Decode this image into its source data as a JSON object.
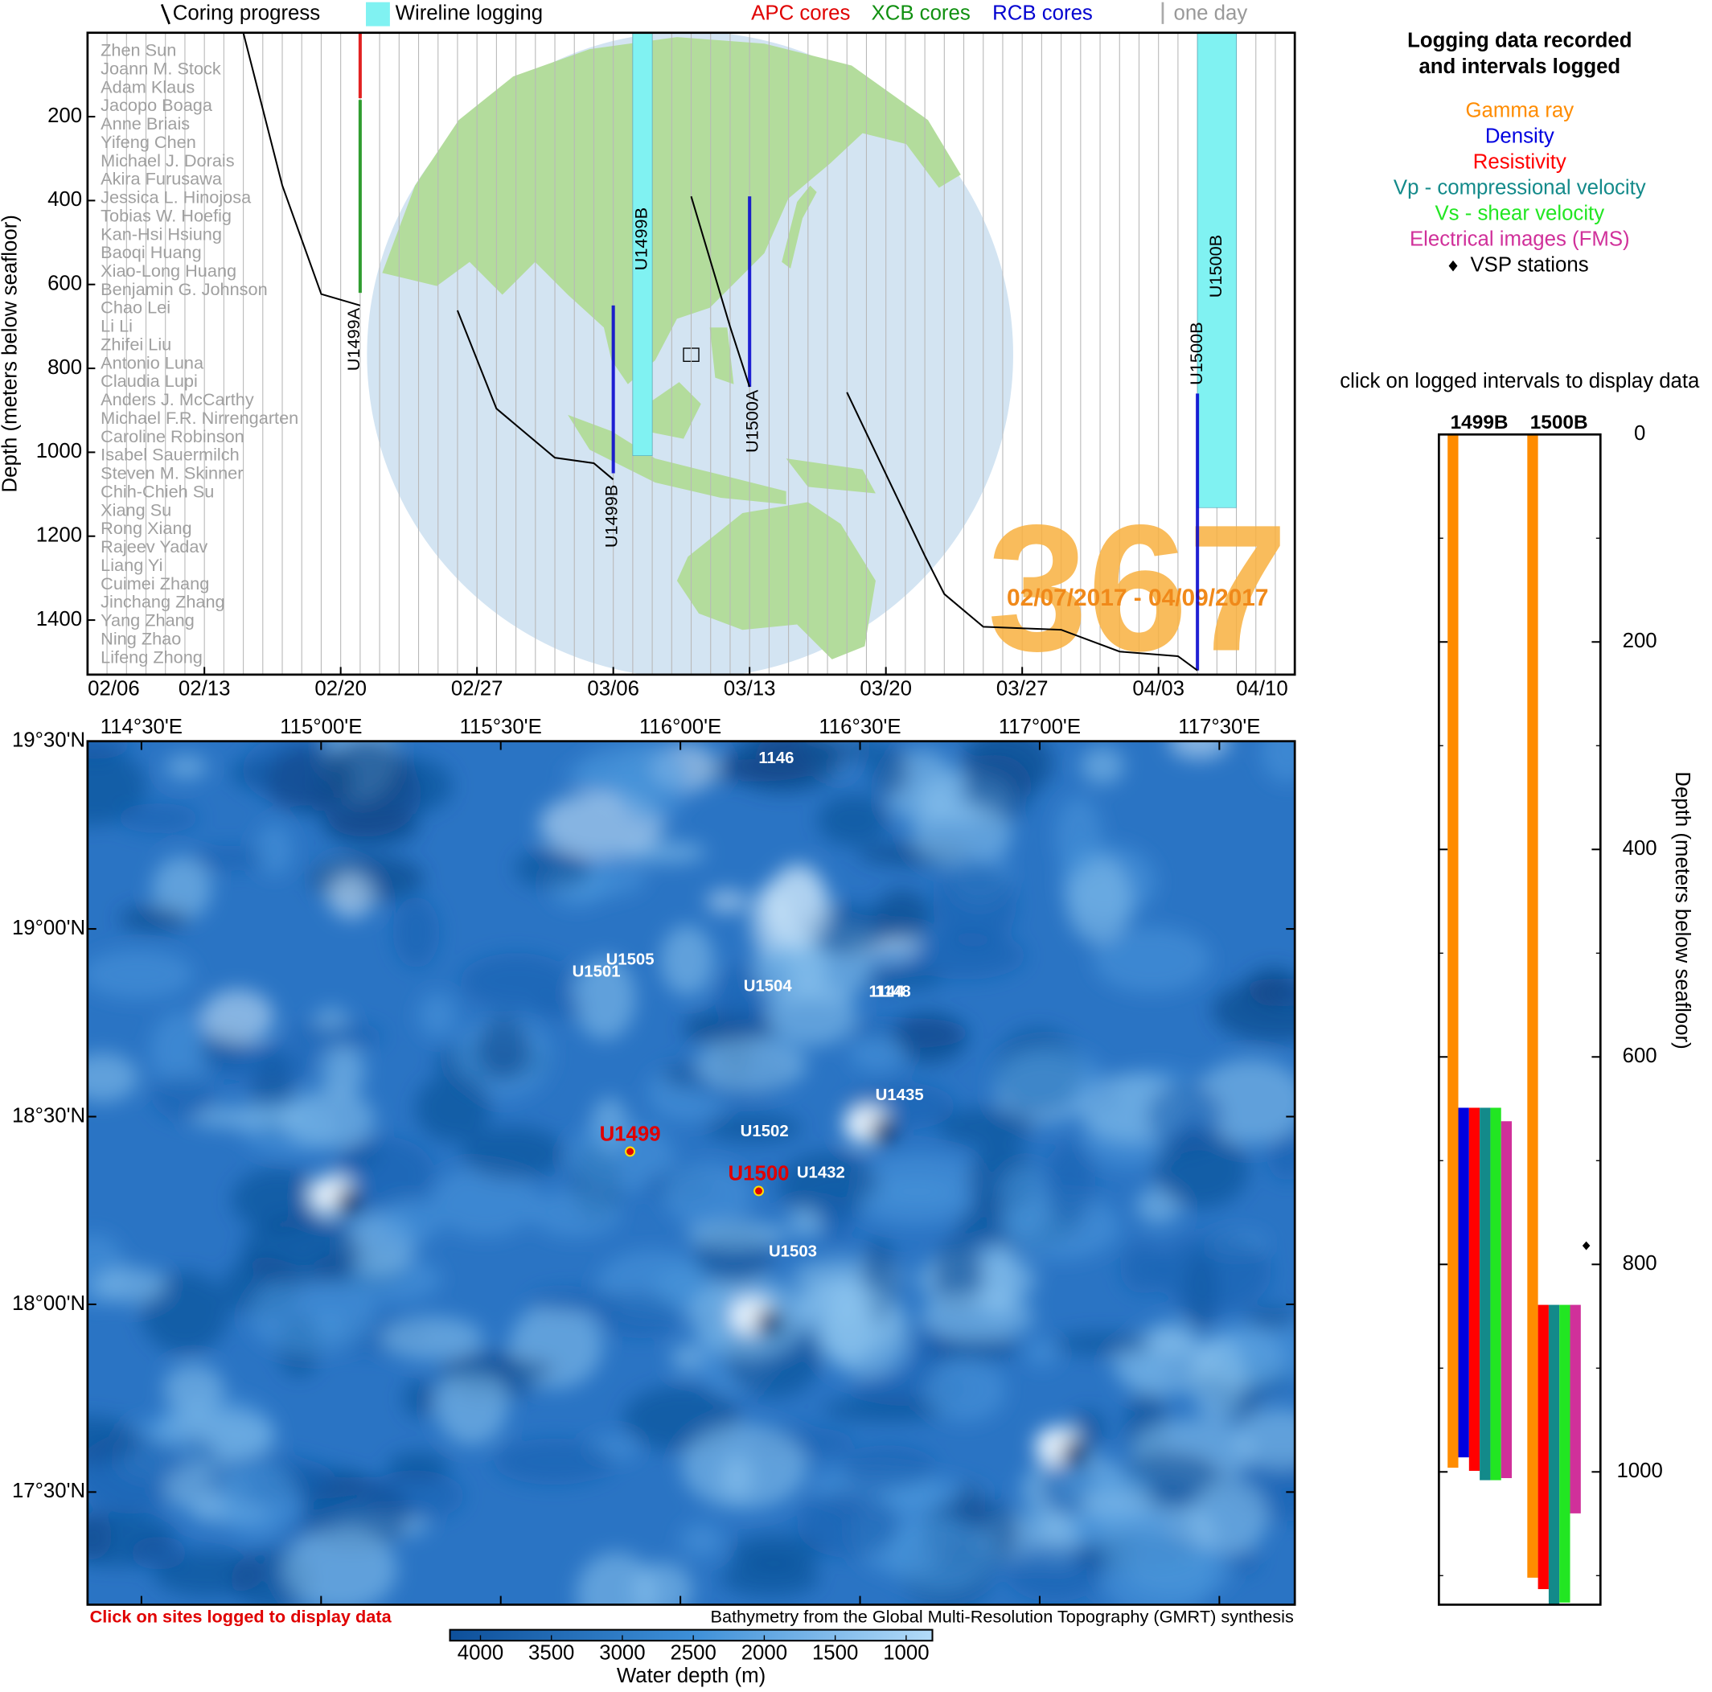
{
  "chart_data": [
    {
      "type": "line",
      "y_label": "Depth (meters below seafloor)",
      "x": [
        "02/15",
        "02/17",
        "02/19",
        "02/21",
        "02/24",
        "02/26",
        "02/28",
        "03/03",
        "03/05",
        "03/06",
        "03/08",
        "03/10",
        "03/11",
        "03/12",
        "03/13",
        "03/16",
        "03/18",
        "03/22",
        "03/23",
        "03/25",
        "03/29",
        "04/01",
        "04/04",
        "04/05"
      ],
      "series": [
        {
          "name": "Coring progress",
          "color": "#000000",
          "values": [
            0,
            364,
            623,
            650,
            null,
            662,
            896,
            1013,
            1026,
            1065,
            null,
            390,
            545,
            701,
            844,
            null,
            857,
            1247,
            1338,
            1416,
            1423,
            1475,
            1486,
            1520
          ]
        }
      ],
      "holes": [
        "U1499A",
        "U1499B",
        "U1500A",
        "U1500B"
      ],
      "logging": {
        "name": "Wireline logging",
        "color": "#80f2f2",
        "intervals": [
          {
            "label": "U1499B",
            "start": "03/07",
            "end": "03/08",
            "top": 0,
            "bottom": 1008
          },
          {
            "label": "U1500B",
            "start": "04/05",
            "end": "04/07",
            "top": 0,
            "bottom": 1132
          }
        ]
      },
      "cores": [
        {
          "name": "APC cores",
          "color": "#e00000",
          "intervals": [
            {
              "date": "02/21",
              "top": 0,
              "bottom": 156
            }
          ]
        },
        {
          "name": "XCB cores",
          "color": "#109010",
          "intervals": [
            {
              "date": "02/21",
              "top": 160,
              "bottom": 620
            }
          ]
        },
        {
          "name": "RCB cores",
          "color": "#0000d0",
          "intervals": [
            {
              "date": "03/06",
              "top": 650,
              "bottom": 1050
            },
            {
              "date": "03/13",
              "top": 390,
              "bottom": 844
            },
            {
              "date": "04/05",
              "top": 860,
              "bottom": 1520
            }
          ]
        }
      ],
      "day_legend": "one day",
      "expedition": "367",
      "date_range": "02/07/2017 - 04/09/2017",
      "xlim": [
        "02/07",
        "04/10"
      ],
      "xticks": [
        "02/06",
        "02/13",
        "02/20",
        "02/27",
        "03/06",
        "03/13",
        "03/20",
        "03/27",
        "04/03",
        "04/10"
      ],
      "ylim": [
        0,
        1530
      ],
      "y_reversed": true,
      "yticks": [
        200,
        400,
        600,
        800,
        1000,
        1200,
        1400
      ],
      "grid": "daily"
    },
    {
      "type": "bar",
      "title": [
        "Logging data recorded",
        "and intervals logged"
      ],
      "subtitle": "click on logged intervals to display data",
      "y_label": "Depth (meters below seafloor)",
      "categories": [
        "1499B",
        "1500B"
      ],
      "series": [
        {
          "name": "Gamma ray",
          "color": "#ff8c00",
          "top": [
            0,
            0
          ],
          "bottom": [
            996,
            1102
          ]
        },
        {
          "name": "Density",
          "color": "#0000e0",
          "top": [
            649,
            null
          ],
          "bottom": [
            986,
            null
          ]
        },
        {
          "name": "Resistivity",
          "color": "#ff0000",
          "top": [
            649,
            839
          ],
          "bottom": [
            999,
            1113
          ]
        },
        {
          "name": "Vp - compressional velocity",
          "color": "#138a8a",
          "top": [
            649,
            839
          ],
          "bottom": [
            1008,
            1128
          ]
        },
        {
          "name": "Vs - shear velocity",
          "color": "#22e622",
          "top": [
            649,
            839
          ],
          "bottom": [
            1008,
            1126
          ]
        },
        {
          "name": "Electrical images (FMS)",
          "color": "#d0309a",
          "top": [
            662,
            839
          ],
          "bottom": [
            1006,
            1040
          ]
        }
      ],
      "vsp": {
        "name": "VSP stations",
        "color": "#000000",
        "category": 1,
        "values": [
          782
        ]
      },
      "ylim": [
        0,
        1128
      ],
      "y_reversed": true,
      "yticks": [
        0,
        200,
        400,
        600,
        800,
        1000
      ],
      "minor_yticks": [
        100,
        300,
        500,
        700,
        900,
        1100
      ]
    }
  ],
  "participants": [
    "Zhen Sun",
    "Joann M. Stock",
    "Adam Klaus",
    "Jacopo Boaga",
    "Anne Briais",
    "Yifeng Chen",
    "Michael J. Dorais",
    "Akira Furusawa",
    "Jessica L. Hinojosa",
    "Tobias W. Hoefig",
    "Kan-Hsi Hsiung",
    "Baoqi Huang",
    "Xiao-Long Huang",
    "Benjamin G. Johnson",
    "Chao Lei",
    "Li Li",
    "Zhifei Liu",
    "Antonio Luna",
    "Claudia Lupi",
    "Anders J. McCarthy",
    "Michael F.R. Nirrengarten",
    "Caroline Robinson",
    "Isabel Sauermilch",
    "Steven M. Skinner",
    "Chih-Chieh Su",
    "Xiang Su",
    "Rong Xiang",
    "Rajeev Yadav",
    "Liang Yi",
    "Cuimei Zhang",
    "Jinchang Zhang",
    "Yang Zhang",
    "Ning Zhao",
    "Lifeng Zhong"
  ],
  "map": {
    "xlim": [
      114.35,
      117.71
    ],
    "ylim": [
      17.2,
      19.5
    ],
    "xticks": [
      {
        "value": 114.5,
        "label": "114°30'E"
      },
      {
        "value": 115,
        "label": "115°00'E"
      },
      {
        "value": 115.5,
        "label": "115°30'E"
      },
      {
        "value": 116,
        "label": "116°00'E"
      },
      {
        "value": 116.5,
        "label": "116°30'E"
      },
      {
        "value": 117,
        "label": "117°00'E"
      },
      {
        "value": 117.5,
        "label": "117°30'E"
      }
    ],
    "yticks": [
      {
        "value": 19.5,
        "label": "19°30'N"
      },
      {
        "value": 19,
        "label": "19°00'N"
      },
      {
        "value": 18.5,
        "label": "18°30'N"
      },
      {
        "value": 18,
        "label": "18°00'N"
      },
      {
        "value": 17.5,
        "label": "17°30'N"
      }
    ],
    "sites": [
      {
        "label": "1146",
        "lon": 116.267,
        "lat": 19.453,
        "logged": false
      },
      {
        "label": "U1505",
        "lon": 115.86,
        "lat": 18.916,
        "logged": false
      },
      {
        "label": "U1501",
        "lon": 115.766,
        "lat": 18.884,
        "logged": false
      },
      {
        "label": "U1504",
        "lon": 116.243,
        "lat": 18.846,
        "logged": false
      },
      {
        "label": "1144",
        "lon": 116.574,
        "lat": 18.831,
        "logged": false
      },
      {
        "label": "1148",
        "lon": 116.592,
        "lat": 18.831,
        "logged": false
      },
      {
        "label": "U1435",
        "lon": 116.61,
        "lat": 18.555,
        "logged": false
      },
      {
        "label": "U1502",
        "lon": 116.234,
        "lat": 18.459,
        "logged": false
      },
      {
        "label": "U1432",
        "lon": 116.391,
        "lat": 18.349,
        "logged": false
      },
      {
        "label": "U1503",
        "lon": 116.313,
        "lat": 18.139,
        "logged": false
      },
      {
        "label": "U1499",
        "lon": 115.86,
        "lat": 18.407,
        "logged": true
      },
      {
        "label": "U1500",
        "lon": 116.218,
        "lat": 18.302,
        "logged": true
      }
    ],
    "note": "Click on sites logged to display data",
    "credit": "Bathymetry from the Global Multi-Resolution Topography (GMRT) synthesis",
    "colorbar": {
      "label": "Water depth (m)",
      "lim": [
        4215,
        815
      ],
      "ticks": [
        4000,
        3500,
        3000,
        2500,
        2000,
        1500,
        1000
      ]
    }
  }
}
